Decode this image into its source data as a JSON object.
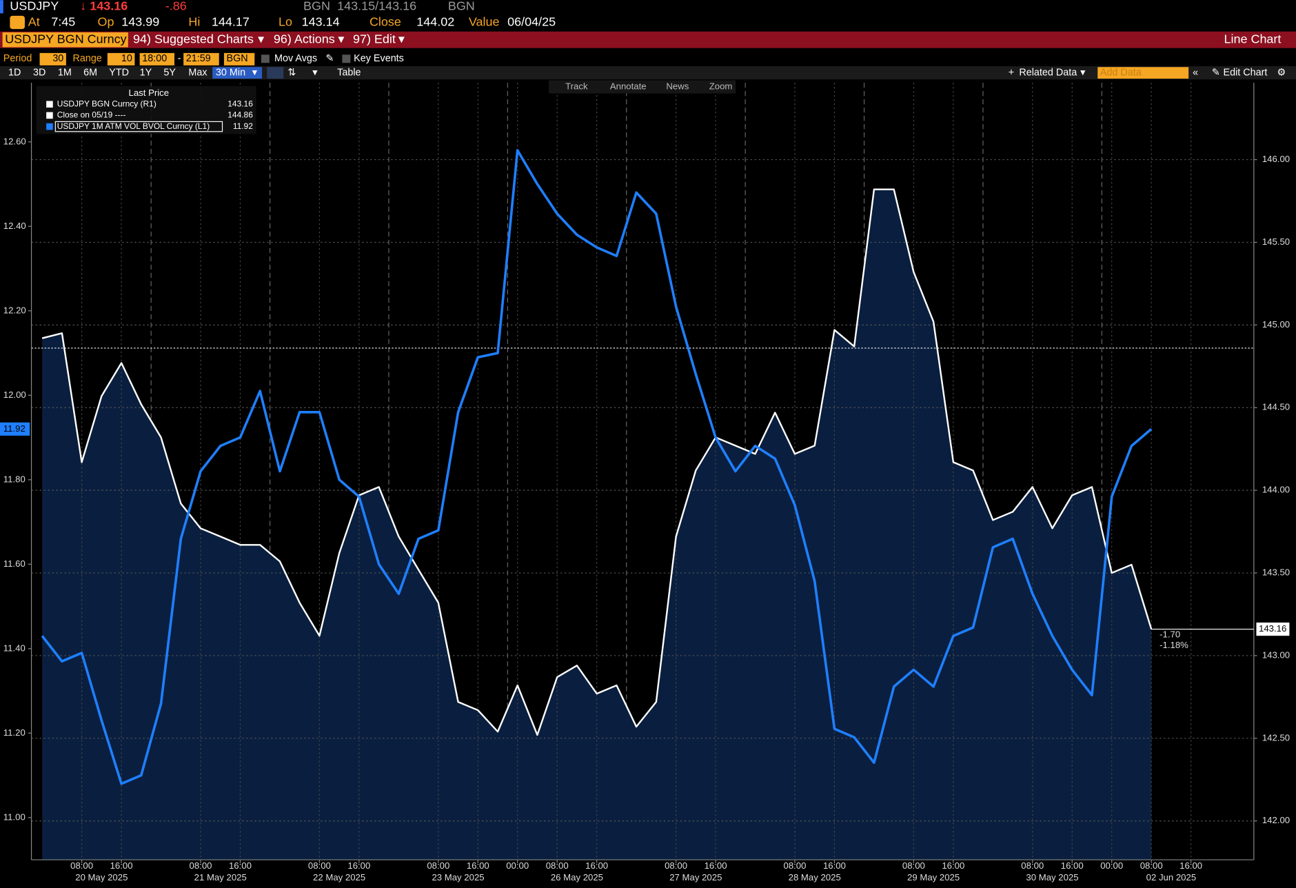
{
  "header": {
    "ticker": "USDJPY",
    "last": "↓ 143.16",
    "change": "-.86",
    "source": "BGN",
    "bid_ask": "143.15/143.16",
    "source2": "BGN"
  },
  "quote": {
    "at_label": "At",
    "at": "7:45",
    "op_label": "Op",
    "op": 143.99,
    "hi_label": "Hi",
    "hi": 144.17,
    "lo_label": "Lo",
    "lo": 143.14,
    "close_label": "Close",
    "close": 144.02,
    "value_label": "Value",
    "value": "06/04/25"
  },
  "menu": {
    "security": "USDJPY BGN Curncy",
    "suggested": "94) Suggested Charts",
    "actions": "96) Actions",
    "edit": "97) Edit",
    "chart_type": "Line Chart"
  },
  "settings": {
    "period_label": "Period",
    "period": 30,
    "range_label": "Range",
    "range": 10,
    "start": "18:00",
    "dash": "-",
    "end": "21:59",
    "source": "BGN",
    "mov_avgs": "Mov Avgs",
    "key_events": "Key Events"
  },
  "toolbar": {
    "timeframes": [
      "1D",
      "3D",
      "1M",
      "6M",
      "YTD",
      "1Y",
      "5Y",
      "Max"
    ],
    "interval": "30 Min",
    "table": "Table",
    "related": "Related Data",
    "add_data": "Add Data",
    "edit_chart": "Edit Chart"
  },
  "tools": [
    "Track",
    "Annotate",
    "News",
    "Zoom"
  ],
  "chart_data": {
    "type": "line",
    "legend_title": "Last Price",
    "x": [
      "20 May 2025 00:00",
      "20 May 2025 04:00",
      "20 May 2025 08:00",
      "20 May 2025 12:00",
      "20 May 2025 16:00",
      "20 May 2025 20:00",
      "21 May 2025 00:00",
      "21 May 2025 04:00",
      "21 May 2025 08:00",
      "21 May 2025 12:00",
      "21 May 2025 16:00",
      "21 May 2025 20:00",
      "22 May 2025 00:00",
      "22 May 2025 04:00",
      "22 May 2025 08:00",
      "22 May 2025 12:00",
      "22 May 2025 16:00",
      "22 May 2025 20:00",
      "23 May 2025 00:00",
      "23 May 2025 04:00",
      "23 May 2025 08:00",
      "23 May 2025 12:00",
      "23 May 2025 16:00",
      "23 May 2025 20:00",
      "26 May 2025 00:00",
      "26 May 2025 04:00",
      "26 May 2025 08:00",
      "26 May 2025 12:00",
      "26 May 2025 16:00",
      "26 May 2025 20:00",
      "27 May 2025 00:00",
      "27 May 2025 04:00",
      "27 May 2025 08:00",
      "27 May 2025 12:00",
      "27 May 2025 16:00",
      "27 May 2025 20:00",
      "28 May 2025 00:00",
      "28 May 2025 04:00",
      "28 May 2025 08:00",
      "28 May 2025 12:00",
      "28 May 2025 16:00",
      "28 May 2025 20:00",
      "29 May 2025 00:00",
      "29 May 2025 04:00",
      "29 May 2025 08:00",
      "29 May 2025 12:00",
      "29 May 2025 16:00",
      "29 May 2025 20:00",
      "30 May 2025 00:00",
      "30 May 2025 04:00",
      "30 May 2025 08:00",
      "30 May 2025 12:00",
      "30 May 2025 16:00",
      "30 May 2025 20:00",
      "02 Jun 2025 00:00",
      "02 Jun 2025 04:00",
      "02 Jun 2025 08:00"
    ],
    "series": [
      {
        "name": "USDJPY BGN Curncy  (R1)",
        "color": "#ffffff",
        "fill": "#0a1f3f",
        "axis": "y2",
        "last": 143.16,
        "values": [
          144.92,
          144.95,
          144.17,
          144.57,
          144.77,
          144.52,
          144.32,
          143.92,
          143.77,
          143.72,
          143.67,
          143.67,
          143.57,
          143.32,
          143.12,
          143.62,
          143.97,
          144.02,
          143.72,
          143.52,
          143.32,
          142.72,
          142.67,
          142.54,
          142.82,
          142.52,
          142.87,
          142.94,
          142.77,
          142.82,
          142.57,
          142.72,
          143.72,
          144.12,
          144.32,
          144.27,
          144.22,
          144.47,
          144.22,
          144.27,
          144.97,
          144.87,
          145.82,
          145.82,
          145.32,
          145.02,
          144.17,
          144.12,
          143.82,
          143.87,
          144.02,
          143.77,
          143.97,
          144.02,
          143.5,
          143.55,
          143.16
        ]
      },
      {
        "name": "USDJPY 1M ATM VOL BVOL Curncy  (L1)",
        "color": "#1f7fff",
        "last": 11.92,
        "values": [
          11.43,
          11.37,
          11.39,
          11.23,
          11.08,
          11.1,
          11.27,
          11.66,
          11.82,
          11.88,
          11.9,
          12.01,
          11.82,
          11.96,
          11.96,
          11.8,
          11.76,
          11.6,
          11.53,
          11.66,
          11.68,
          11.96,
          12.09,
          12.1,
          12.58,
          12.5,
          12.43,
          12.38,
          12.35,
          12.33,
          12.48,
          12.43,
          12.21,
          12.05,
          11.9,
          11.82,
          11.88,
          11.85,
          11.74,
          11.56,
          11.21,
          11.19,
          11.13,
          11.31,
          11.35,
          11.31,
          11.43,
          11.45,
          11.64,
          11.66,
          11.53,
          11.43,
          11.35,
          11.29,
          11.76,
          11.88,
          11.92
        ]
      }
    ],
    "reference_line": {
      "name": "Close on 05/19 ----",
      "value": 144.86,
      "color": "#ffffff"
    },
    "change_labels": [
      "-1.70",
      "-1.18%"
    ],
    "ylim": [
      10.9,
      12.74
    ],
    "yticks": [
      {
        "value": 11,
        "label": "11.00"
      },
      {
        "value": 11.2,
        "label": "11.20"
      },
      {
        "value": 11.4,
        "label": "11.40"
      },
      {
        "value": 11.6,
        "label": "11.60"
      },
      {
        "value": 11.8,
        "label": "11.80"
      },
      {
        "value": 12,
        "label": "12.00"
      },
      {
        "value": 12.2,
        "label": "12.20"
      },
      {
        "value": 12.4,
        "label": "12.40"
      },
      {
        "value": 12.6,
        "label": "12.60"
      }
    ],
    "y2lim": [
      141.765,
      146.465
    ],
    "y2ticks": [
      {
        "value": 142,
        "label": "142.00"
      },
      {
        "value": 142.5,
        "label": "142.50"
      },
      {
        "value": 143,
        "label": "143.00"
      },
      {
        "value": 143.5,
        "label": "143.50"
      },
      {
        "value": 144,
        "label": "144.00"
      },
      {
        "value": 144.5,
        "label": "144.50"
      },
      {
        "value": 145,
        "label": "145.00"
      },
      {
        "value": 145.5,
        "label": "145.50"
      },
      {
        "value": 146,
        "label": "146.00"
      }
    ],
    "grid": true,
    "xticks": [
      {
        "value": "20 May 2025 08:00",
        "label": "08:00"
      },
      {
        "value": "20 May 2025 16:00",
        "label": "16:00"
      },
      {
        "value": "21 May 2025 08:00",
        "label": "08:00"
      },
      {
        "value": "21 May 2025 16:00",
        "label": "16:00"
      },
      {
        "value": "22 May 2025 08:00",
        "label": "08:00"
      },
      {
        "value": "22 May 2025 16:00",
        "label": "16:00"
      },
      {
        "value": "23 May 2025 08:00",
        "label": "08:00"
      },
      {
        "value": "23 May 2025 16:00",
        "label": "16:00"
      },
      {
        "value": "26 May 2025 00:00",
        "label": "00:00"
      },
      {
        "value": "26 May 2025 08:00",
        "label": "08:00"
      },
      {
        "value": "26 May 2025 16:00",
        "label": "16:00"
      },
      {
        "value": "27 May 2025 08:00",
        "label": "08:00"
      },
      {
        "value": "27 May 2025 16:00",
        "label": "16:00"
      },
      {
        "value": "28 May 2025 08:00",
        "label": "08:00"
      },
      {
        "value": "28 May 2025 16:00",
        "label": "16:00"
      },
      {
        "value": "29 May 2025 08:00",
        "label": "08:00"
      },
      {
        "value": "29 May 2025 16:00",
        "label": "16:00"
      },
      {
        "value": "30 May 2025 08:00",
        "label": "08:00"
      },
      {
        "value": "30 May 2025 16:00",
        "label": "16:00"
      },
      {
        "value": "02 Jun 2025 00:00",
        "label": "00:00"
      },
      {
        "value": "02 Jun 2025 08:00",
        "label": "08:00"
      },
      {
        "value": "02 Jun 2025 16:00",
        "label": "16:00"
      }
    ],
    "day_labels": [
      "20 May 2025",
      "21 May 2025",
      "22 May 2025",
      "23 May 2025",
      "26 May 2025",
      "27 May 2025",
      "28 May 2025",
      "29 May 2025",
      "30 May 2025",
      "02 Jun 2025"
    ]
  }
}
